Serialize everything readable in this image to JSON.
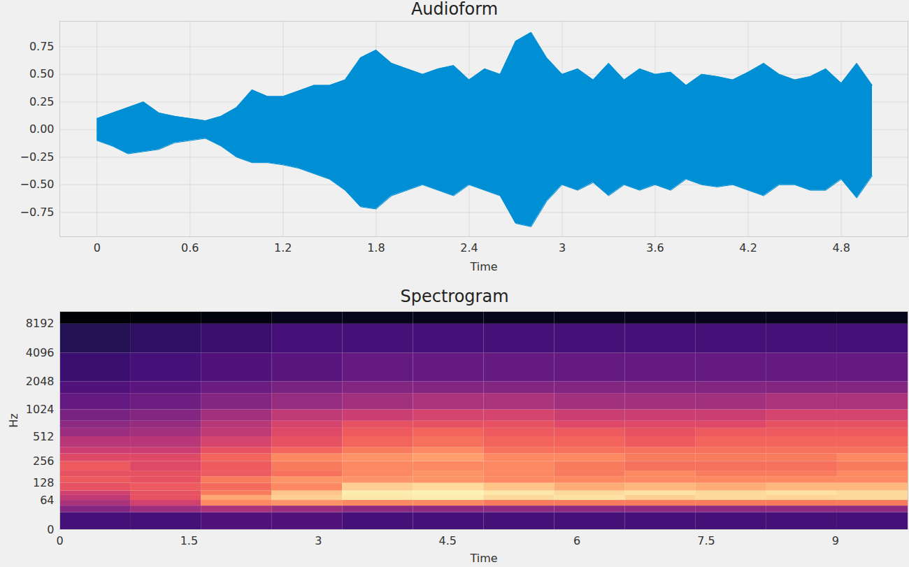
{
  "chart_data": [
    {
      "type": "area",
      "title": "Audioform",
      "x_label": "Time",
      "x": [
        0,
        0.1,
        0.2,
        0.3,
        0.4,
        0.5,
        0.6,
        0.7,
        0.8,
        0.9,
        1.0,
        1.1,
        1.2,
        1.3,
        1.4,
        1.5,
        1.6,
        1.7,
        1.8,
        1.9,
        2.0,
        2.1,
        2.2,
        2.3,
        2.4,
        2.5,
        2.6,
        2.7,
        2.8,
        2.9,
        3.0,
        3.1,
        3.2,
        3.3,
        3.4,
        3.5,
        3.6,
        3.7,
        3.8,
        3.9,
        4.0,
        4.1,
        4.2,
        4.3,
        4.4,
        4.5,
        4.6,
        4.7,
        4.8,
        4.9,
        5.0
      ],
      "upper": [
        0.1,
        0.15,
        0.2,
        0.25,
        0.15,
        0.12,
        0.1,
        0.08,
        0.12,
        0.2,
        0.36,
        0.3,
        0.3,
        0.35,
        0.4,
        0.4,
        0.45,
        0.65,
        0.72,
        0.6,
        0.55,
        0.5,
        0.55,
        0.58,
        0.45,
        0.55,
        0.5,
        0.8,
        0.88,
        0.65,
        0.5,
        0.55,
        0.45,
        0.6,
        0.45,
        0.55,
        0.5,
        0.52,
        0.4,
        0.5,
        0.48,
        0.45,
        0.52,
        0.6,
        0.5,
        0.45,
        0.48,
        0.55,
        0.42,
        0.6,
        0.4
      ],
      "lower": [
        -0.1,
        -0.15,
        -0.22,
        -0.2,
        -0.18,
        -0.12,
        -0.1,
        -0.08,
        -0.15,
        -0.25,
        -0.3,
        -0.3,
        -0.32,
        -0.35,
        -0.4,
        -0.45,
        -0.55,
        -0.7,
        -0.72,
        -0.6,
        -0.55,
        -0.5,
        -0.55,
        -0.6,
        -0.5,
        -0.55,
        -0.6,
        -0.85,
        -0.88,
        -0.65,
        -0.5,
        -0.55,
        -0.48,
        -0.6,
        -0.5,
        -0.55,
        -0.5,
        -0.55,
        -0.45,
        -0.5,
        -0.52,
        -0.5,
        -0.55,
        -0.6,
        -0.5,
        -0.5,
        -0.55,
        -0.55,
        -0.45,
        -0.62,
        -0.42
      ],
      "color": "#008fd5",
      "xlim": [
        -0.24,
        5.23
      ],
      "ylim": [
        -0.97,
        0.98
      ],
      "xticks": [
        0,
        0.6,
        1.2,
        1.8,
        2.4,
        3,
        3.6,
        4.2,
        4.8
      ],
      "yticks": [
        {
          "value": -0.75,
          "label": "−0.75"
        },
        {
          "value": -0.5,
          "label": "−0.50"
        },
        {
          "value": -0.25,
          "label": "−0.25"
        },
        {
          "value": 0,
          "label": "0.00"
        },
        {
          "value": 0.25,
          "label": "0.25"
        },
        {
          "value": 0.5,
          "label": "0.50"
        },
        {
          "value": 0.75,
          "label": "0.75"
        }
      ],
      "grid": true
    },
    {
      "type": "heatmap",
      "title": "Spectrogram",
      "x_label": "Time",
      "y_label": "Hz",
      "log": "y",
      "time_edges": [
        0,
        0.82,
        1.64,
        2.46,
        3.28,
        4.1,
        4.92,
        5.74,
        6.56,
        7.38,
        8.2,
        9.02,
        9.84
      ],
      "freq_edges": [
        0,
        32,
        48,
        64,
        80,
        96,
        128,
        160,
        192,
        256,
        320,
        384,
        512,
        640,
        768,
        1024,
        1536,
        2048,
        4096,
        8192,
        11025
      ],
      "cells": [
        [
          -62,
          -50,
          -42,
          -38,
          -35,
          -30,
          -28,
          -30,
          -28,
          -32,
          -36,
          -40,
          -45,
          -48,
          -52,
          -56,
          -60,
          -64,
          -68,
          -80
        ],
        [
          -62,
          -45,
          -35,
          -30,
          -30,
          -28,
          -30,
          -30,
          -32,
          -32,
          -36,
          -40,
          -44,
          -46,
          -50,
          -54,
          -58,
          -62,
          -66,
          -79
        ],
        [
          -60,
          -42,
          -20,
          -15,
          -22,
          -25,
          -22,
          -28,
          -28,
          -26,
          -30,
          -34,
          -38,
          -40,
          -44,
          -50,
          -55,
          -60,
          -64,
          -78
        ],
        [
          -60,
          -45,
          -18,
          -8,
          -10,
          -20,
          -18,
          -24,
          -22,
          -20,
          -26,
          -30,
          -32,
          -34,
          -38,
          -46,
          -52,
          -58,
          -62,
          -76
        ],
        [
          -62,
          -48,
          -20,
          -4,
          -3,
          -8,
          -18,
          -20,
          -20,
          -18,
          -22,
          -26,
          -28,
          -30,
          -36,
          -44,
          -50,
          -56,
          -62,
          -76
        ],
        [
          -62,
          -48,
          -20,
          -3,
          -2,
          -6,
          -18,
          -18,
          -20,
          -16,
          -20,
          -24,
          -26,
          -30,
          -34,
          -42,
          -50,
          -56,
          -62,
          -76
        ],
        [
          -62,
          -48,
          -22,
          -6,
          -4,
          -10,
          -20,
          -20,
          -20,
          -20,
          -24,
          -26,
          -28,
          -30,
          -34,
          -42,
          -50,
          -56,
          -62,
          -76
        ],
        [
          -62,
          -48,
          -22,
          -5,
          -6,
          -14,
          -20,
          -22,
          -22,
          -20,
          -24,
          -26,
          -28,
          -32,
          -36,
          -44,
          -50,
          -56,
          -62,
          -76
        ],
        [
          -62,
          -48,
          -22,
          -8,
          -5,
          -12,
          -20,
          -20,
          -24,
          -22,
          -24,
          -28,
          -30,
          -32,
          -36,
          -44,
          -50,
          -56,
          -62,
          -76
        ],
        [
          -62,
          -48,
          -22,
          -6,
          -6,
          -14,
          -20,
          -22,
          -24,
          -22,
          -24,
          -26,
          -28,
          -32,
          -36,
          -44,
          -50,
          -56,
          -62,
          -76
        ],
        [
          -62,
          -48,
          -22,
          -7,
          -5,
          -12,
          -20,
          -22,
          -24,
          -22,
          -24,
          -26,
          -28,
          -30,
          -34,
          -42,
          -50,
          -56,
          -62,
          -76
        ],
        [
          -62,
          -48,
          -22,
          -6,
          -6,
          -12,
          -20,
          -20,
          -22,
          -20,
          -24,
          -26,
          -28,
          -30,
          -34,
          -42,
          -50,
          -56,
          -62,
          -76
        ]
      ],
      "color": "magma",
      "zlim": [
        -80,
        0
      ],
      "xlim": [
        0,
        9.84
      ],
      "ylim": [
        0,
        11025
      ],
      "xticks": [
        0,
        1.5,
        3,
        4.5,
        6,
        7.5,
        9
      ],
      "yticks": [
        0,
        64,
        128,
        256,
        512,
        1024,
        2048,
        4096,
        8192
      ],
      "grid": false
    }
  ]
}
